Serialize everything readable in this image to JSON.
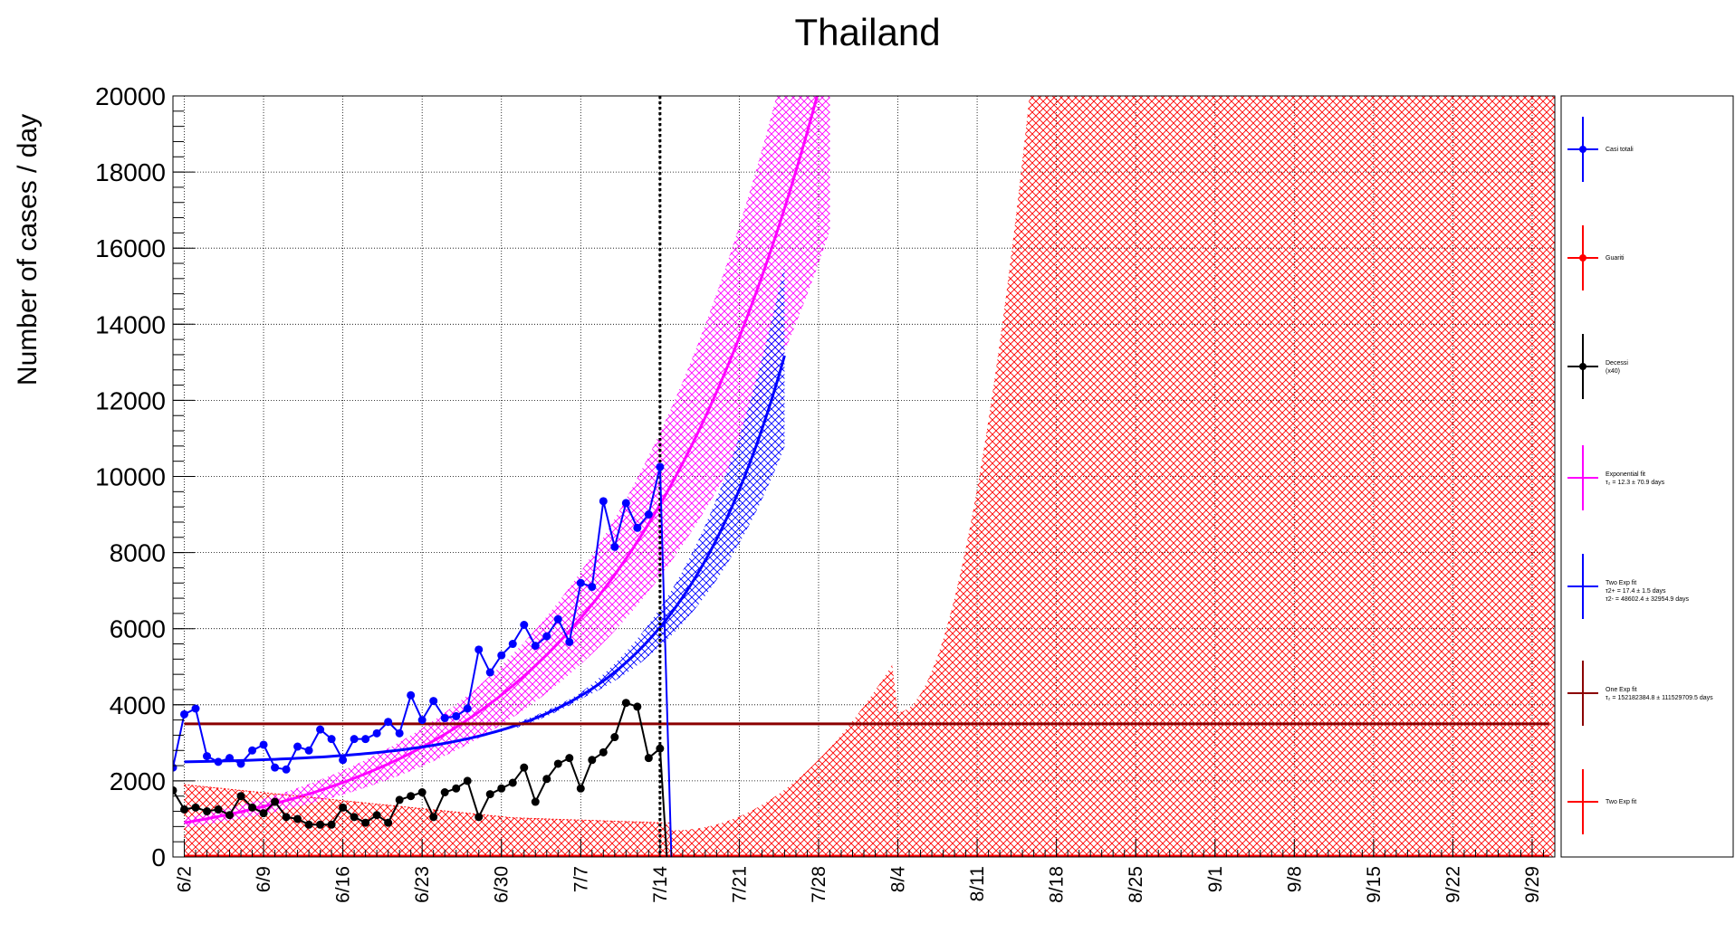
{
  "chart_data": {
    "type": "line",
    "title": "Thailand",
    "ylabel": "Number of cases / day",
    "xlabel": "",
    "ylim": [
      0,
      20000
    ],
    "xlim": [
      "6/1",
      "10/1"
    ],
    "grid": true,
    "y_ticks": [
      "0",
      "2000",
      "4000",
      "6000",
      "8000",
      "10000",
      "12000",
      "14000",
      "16000",
      "18000",
      "20000"
    ],
    "x_tick_labels": [
      "6/2",
      "6/9",
      "6/16",
      "6/23",
      "6/30",
      "7/7",
      "7/14",
      "7/21",
      "7/28",
      "8/4",
      "8/11",
      "8/18",
      "8/25",
      "9/1",
      "9/8",
      "9/15",
      "9/22",
      "9/29"
    ],
    "x_ticks": [
      "6/2",
      "6/9",
      "6/16",
      "6/23",
      "6/30",
      "7/7",
      "7/14",
      "7/21",
      "7/28",
      "8/4",
      "8/11",
      "8/18",
      "8/25",
      "9/1",
      "9/8",
      "9/15",
      "9/22",
      "9/29"
    ],
    "vertical_line": "7/14",
    "legend_position": "right",
    "x_dates": [
      "6/1",
      "6/2",
      "6/3",
      "6/4",
      "6/5",
      "6/6",
      "6/7",
      "6/8",
      "6/9",
      "6/10",
      "6/11",
      "6/12",
      "6/13",
      "6/14",
      "6/15",
      "6/16",
      "6/17",
      "6/18",
      "6/19",
      "6/20",
      "6/21",
      "6/22",
      "6/23",
      "6/24",
      "6/25",
      "6/26",
      "6/27",
      "6/28",
      "6/29",
      "6/30",
      "7/1",
      "7/2",
      "7/3",
      "7/4",
      "7/5",
      "7/6",
      "7/7",
      "7/8",
      "7/9",
      "7/10",
      "7/11",
      "7/12",
      "7/13",
      "7/14"
    ],
    "series": [
      {
        "name": "Casi totali",
        "color": "#0000ff",
        "values": [
          2350,
          3750,
          3900,
          2650,
          2500,
          2600,
          2450,
          2800,
          2950,
          2350,
          2300,
          2900,
          2800,
          3350,
          3100,
          2550,
          3100,
          3100,
          3250,
          3550,
          3250,
          4250,
          3600,
          4100,
          3650,
          3700,
          3900,
          5450,
          4850,
          5300,
          5600,
          6100,
          5550,
          5800,
          6250,
          5650,
          7200,
          7100,
          9350,
          8150,
          9300,
          8650,
          9000,
          10250
        ]
      },
      {
        "name": "Guariti",
        "color": "#ff0000",
        "values": []
      },
      {
        "name": "Decessi",
        "color": "#000000",
        "values": [
          1750,
          1250,
          1300,
          1200,
          1250,
          1100,
          1600,
          1300,
          1150,
          1450,
          1050,
          1000,
          850,
          850,
          850,
          1300,
          1050,
          900,
          1100,
          900,
          1500,
          1600,
          1700,
          1050,
          1700,
          1800,
          2000,
          1050,
          1650,
          1800,
          1950,
          2350,
          1450,
          2050,
          2450,
          2600,
          1800,
          2550,
          2750,
          3150,
          4050,
          3950,
          2600,
          2850
        ]
      },
      {
        "name": "Exponential fit",
        "color": "#ff00ff",
        "values": []
      },
      {
        "name": "Two Exp fit",
        "color": "#0000ff",
        "values": []
      },
      {
        "name": "One Exp fit",
        "color": "#8b0000",
        "values": [
          3500
        ]
      },
      {
        "name": "Two Exp fit",
        "color": "#ff0000",
        "values": []
      }
    ],
    "legend": [
      {
        "label": "Casi totali",
        "sub": "",
        "color": "#0000ff",
        "marker": true
      },
      {
        "label": "Guariti",
        "sub": "",
        "color": "#ff0000",
        "marker": true
      },
      {
        "label": "Decessi",
        "sub": "(x40)",
        "color": "#000000",
        "marker": true
      },
      {
        "label": "Exponential fit",
        "sub": "τ₂ = 12.3  ± 70.9 days",
        "color": "#ff00ff",
        "marker": false
      },
      {
        "label": "Two Exp fit",
        "sub": "τ2+ = 17.4 ± 1.5 days",
        "sub2": "τ2- = 48602.4 ± 32954.9 days",
        "color": "#0000ff",
        "marker": false
      },
      {
        "label": "One Exp fit",
        "sub": "τ₂ = 152182384.8  ± 111529709.5 days",
        "color": "#8b0000",
        "marker": false
      },
      {
        "label": "Two Exp fit",
        "sub": "",
        "color": "#ff0000",
        "marker": false
      }
    ],
    "colors": {
      "blue": "#0000ff",
      "magenta": "#ff00ff",
      "red": "#ff0000",
      "darkred": "#8b0000",
      "black": "#000000"
    }
  }
}
